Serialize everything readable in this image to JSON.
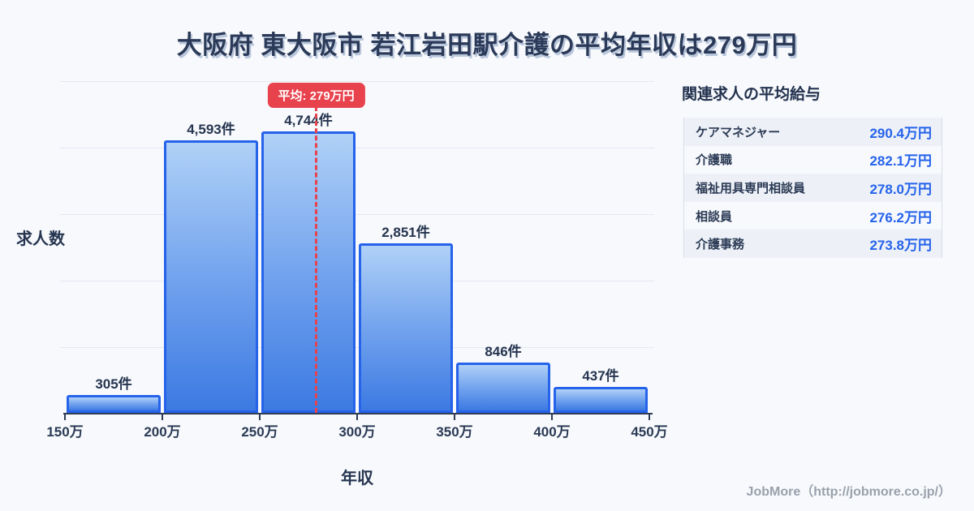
{
  "title": "大阪府 東大阪市 若江岩田駅介護の平均年収は279万円",
  "chart_data": {
    "type": "bar",
    "subtype": "histogram",
    "xlabel": "年収",
    "ylabel": "求人数",
    "bin_edges": [
      150,
      200,
      250,
      300,
      350,
      400,
      450
    ],
    "bin_edge_labels": [
      "150万",
      "200万",
      "250万",
      "300万",
      "350万",
      "400万",
      "450万"
    ],
    "values": [
      305,
      4593,
      4744,
      2851,
      846,
      437
    ],
    "value_labels": [
      "305件",
      "4,593件",
      "4,744件",
      "2,851件",
      "846件",
      "437件"
    ],
    "unit": "件",
    "x_range": [
      150,
      450
    ],
    "grid": true,
    "average": {
      "value": 279,
      "label": "平均: 279万円"
    },
    "bar_fill_top": "#b0d1f7",
    "bar_fill_bottom": "#3c7ae2",
    "bar_border_color": "#2563eb",
    "average_color": "#e8424d"
  },
  "side_panel": {
    "title": "関連求人の平均給与",
    "rows": [
      {
        "label": "ケアマネジャー",
        "value": "290.4万円"
      },
      {
        "label": "介護職",
        "value": "282.1万円"
      },
      {
        "label": "福祉用具専門相談員",
        "value": "278.0万円"
      },
      {
        "label": "相談員",
        "value": "276.2万円"
      },
      {
        "label": "介護事務",
        "value": "273.8万円"
      }
    ],
    "value_color": "#2563eb"
  },
  "footer": {
    "credit": "JobMore（http://jobmore.co.jp/）"
  }
}
